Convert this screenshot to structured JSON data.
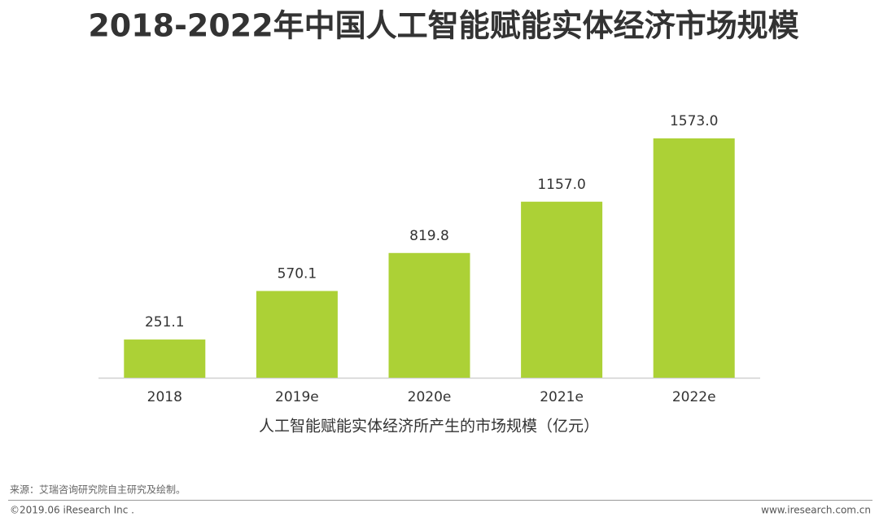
{
  "chart_data": {
    "type": "bar",
    "title": "2018-2022年中国人工智能赋能实体经济市场规模",
    "x_label": "人工智能赋能实体经济所产生的市场规模（亿元）",
    "categories": [
      "2018",
      "2019e",
      "2020e",
      "2021e",
      "2022e"
    ],
    "values": [
      251.1,
      570.1,
      819.8,
      1157.0,
      1573.0
    ],
    "value_labels": [
      "251.1",
      "570.1",
      "819.8",
      "1157.0",
      "1573.0"
    ],
    "color": "#acd136"
  },
  "footer": {
    "source": "来源：艾瑞咨询研究院自主研究及绘制。",
    "copyright": "©2019.06 iResearch Inc .",
    "website": "www.iresearch.com.cn"
  }
}
